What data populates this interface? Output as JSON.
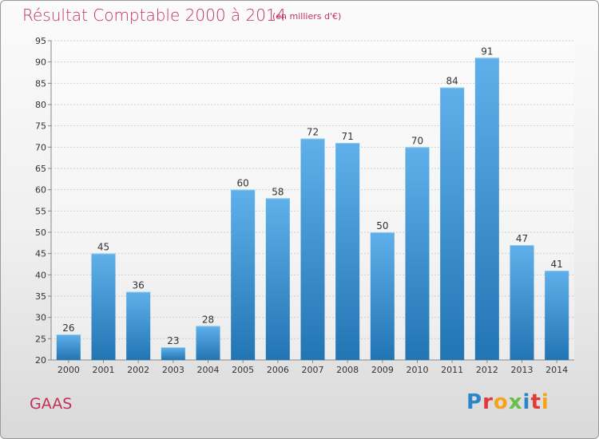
{
  "chart_data": {
    "type": "bar",
    "title": "Résultat Comptable 2000 à 2014",
    "subtitle": "(en milliers d'€)",
    "categories": [
      "2000",
      "2001",
      "2002",
      "2003",
      "2004",
      "2005",
      "2006",
      "2007",
      "2008",
      "2009",
      "2010",
      "2011",
      "2012",
      "2013",
      "2014"
    ],
    "values": [
      26,
      45,
      36,
      23,
      28,
      60,
      58,
      72,
      71,
      50,
      70,
      84,
      91,
      47,
      41
    ],
    "ylim": [
      20,
      95
    ],
    "yticks": [
      20,
      25,
      30,
      35,
      40,
      45,
      50,
      55,
      60,
      65,
      70,
      75,
      80,
      85,
      90,
      95
    ],
    "grid": true,
    "xlabel": "",
    "ylabel": ""
  },
  "footer": {
    "place": "GAAS",
    "logo_text": "Proxiti",
    "logo_colors": [
      "#2a86c8",
      "#e2383a",
      "#f5a31a",
      "#6abd45",
      "#2a86c8",
      "#e2383a",
      "#f5a31a"
    ]
  },
  "colors": {
    "bar_top": "#5fb0ea",
    "bar_bottom": "#2275b3",
    "title": "#c2305a"
  }
}
